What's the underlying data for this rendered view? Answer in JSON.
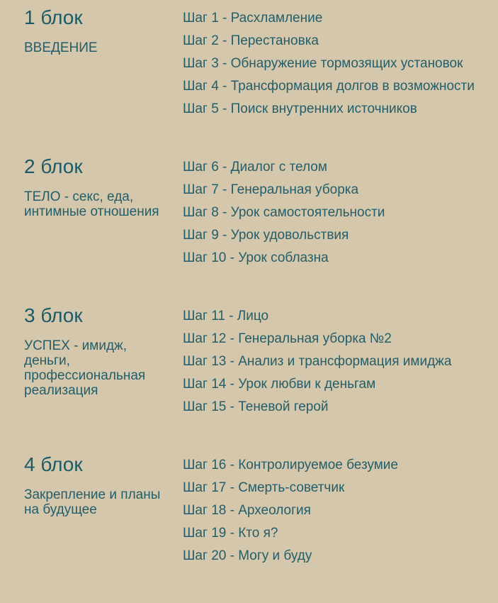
{
  "colors": {
    "background": "#d5c7ab",
    "text": "#235e6a",
    "heading": "#1c5a68"
  },
  "blocks": [
    {
      "title": "1 блок",
      "subtitle": "ВВЕДЕНИЕ",
      "steps": [
        "Шаг 1 - Расхламление",
        "Шаг 2 - Перестановка",
        "Шаг 3 - Обнаружение тормозящих установок",
        "Шаг 4 - Трансформация долгов в возможности",
        "Шаг 5 - Поиск внутренних источников"
      ]
    },
    {
      "title": "2 блок",
      "subtitle": "ТЕЛО - секс, еда,\nинтимные отношения",
      "steps": [
        "Шаг 6 - Диалог с телом",
        "Шаг 7 - Генеральная уборка",
        "Шаг 8 - Урок самостоятельности",
        "Шаг 9 - Урок удовольствия",
        "Шаг 10 - Урок соблазна"
      ]
    },
    {
      "title": "3 блок",
      "subtitle": "УСПЕХ - имидж,\nденьги,\nпрофессиональная\nреализация",
      "steps": [
        "Шаг 11 - Лицо",
        "Шаг 12 - Генеральная уборка №2",
        "Шаг 13 - Анализ и трансформация имиджа",
        "Шаг 14 - Урок любви к деньгам",
        "Шаг 15 - Теневой герой"
      ]
    },
    {
      "title": "4 блок",
      "subtitle": "Закрепление и планы\nна будущее",
      "steps": [
        "Шаг 16 - Контролируемое безумие",
        "Шаг 17 - Смерть-советчик",
        "Шаг 18 - Археология",
        "Шаг 19 - Кто я?",
        "Шаг 20 - Могу и буду"
      ]
    }
  ]
}
